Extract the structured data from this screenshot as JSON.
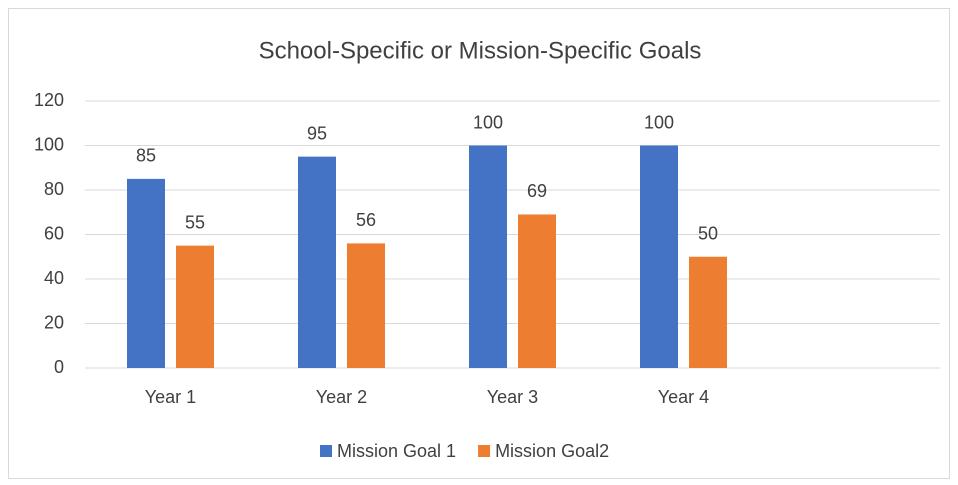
{
  "chart_data": {
    "type": "bar",
    "title": "School-Specific or Mission-Specific Goals",
    "categories": [
      "Year 1",
      "Year 2",
      "Year 3",
      "Year 4",
      null
    ],
    "series": [
      {
        "name": "Mission Goal 1",
        "color": "#4472c4",
        "values": [
          85,
          95,
          100,
          100,
          null
        ]
      },
      {
        "name": "Mission Goal2",
        "color": "#ed7d31",
        "values": [
          55,
          56,
          69,
          50,
          null
        ]
      }
    ],
    "ylim": [
      0,
      120
    ],
    "yticks": [
      0,
      20,
      40,
      60,
      80,
      100,
      120
    ],
    "grid": true,
    "legend": "bottom"
  }
}
